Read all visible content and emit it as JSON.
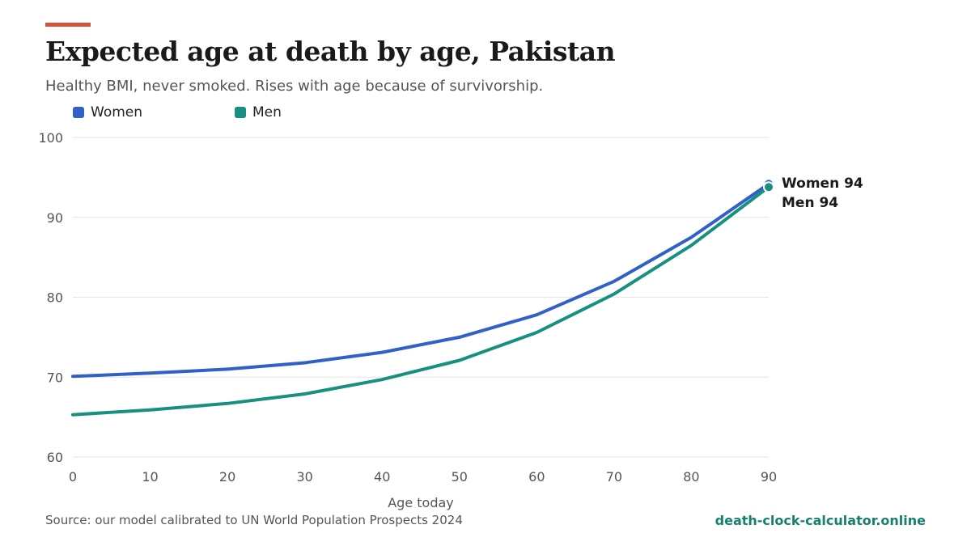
{
  "header": {
    "title": "Expected age at death by age, Pakistan",
    "subtitle": "Healthy BMI, never smoked. Rises with age because of survivorship."
  },
  "footer": {
    "source": "Source: our model calibrated to UN World Population Prospects 2024",
    "brand": "death-clock-calculator.online"
  },
  "colors": {
    "accent": "#d1533b",
    "women": "#3060c8",
    "men": "#17917f",
    "grid": "#e6e6e6",
    "axis_text": "#555555"
  },
  "chart_data": {
    "type": "line",
    "title": "Expected age at death by age, Pakistan",
    "subtitle": "Healthy BMI, never smoked. Rises with age because of survivorship.",
    "xlabel": "Age today",
    "ylabel": "",
    "x": [
      0,
      10,
      20,
      30,
      40,
      50,
      60,
      70,
      80,
      90
    ],
    "xlim": [
      0,
      90
    ],
    "ylim": [
      60,
      100
    ],
    "xticks": [
      0,
      10,
      20,
      30,
      40,
      50,
      60,
      70,
      80,
      90
    ],
    "yticks": [
      60,
      70,
      80,
      90,
      100
    ],
    "grid": "horizontal",
    "legend_position": "top-left",
    "series": [
      {
        "name": "Women",
        "color": "#3060c8",
        "values": [
          70.1,
          70.5,
          71.0,
          71.8,
          73.1,
          75.0,
          77.8,
          82.0,
          87.5,
          94.2
        ],
        "end_label": "Women 94"
      },
      {
        "name": "Men",
        "color": "#17917f",
        "values": [
          65.3,
          65.9,
          66.7,
          67.9,
          69.7,
          72.1,
          75.6,
          80.4,
          86.5,
          93.8
        ],
        "end_label": "Men 94"
      }
    ]
  }
}
